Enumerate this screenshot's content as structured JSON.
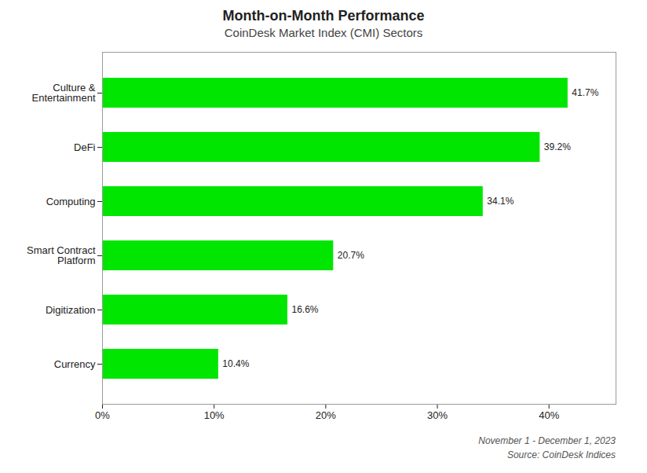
{
  "chart_data": {
    "type": "bar",
    "orientation": "horizontal",
    "title": "Month-on-Month Performance",
    "subtitle": "CoinDesk Market Index (CMI) Sectors",
    "categories": [
      "Currency",
      "Digitization",
      "Smart Contract\nPlatform",
      "Computing",
      "DeFi",
      "Culture &\nEntertainment"
    ],
    "values": [
      10.4,
      16.6,
      20.7,
      34.1,
      39.2,
      41.7
    ],
    "value_labels": [
      "10.4%",
      "16.6%",
      "20.7%",
      "34.1%",
      "39.2%",
      "41.7%"
    ],
    "data_labels": true,
    "color": "#00e600",
    "xlim": [
      0,
      46
    ],
    "xticks": [
      {
        "value": 0,
        "label": "0%"
      },
      {
        "value": 10,
        "label": "10%"
      },
      {
        "value": 20,
        "label": "20%"
      },
      {
        "value": 30,
        "label": "30%"
      },
      {
        "value": 40,
        "label": "40%"
      }
    ],
    "grid": false,
    "annotations": [
      "November 1 - December 1, 2023",
      "Source: CoinDesk Indices"
    ]
  }
}
